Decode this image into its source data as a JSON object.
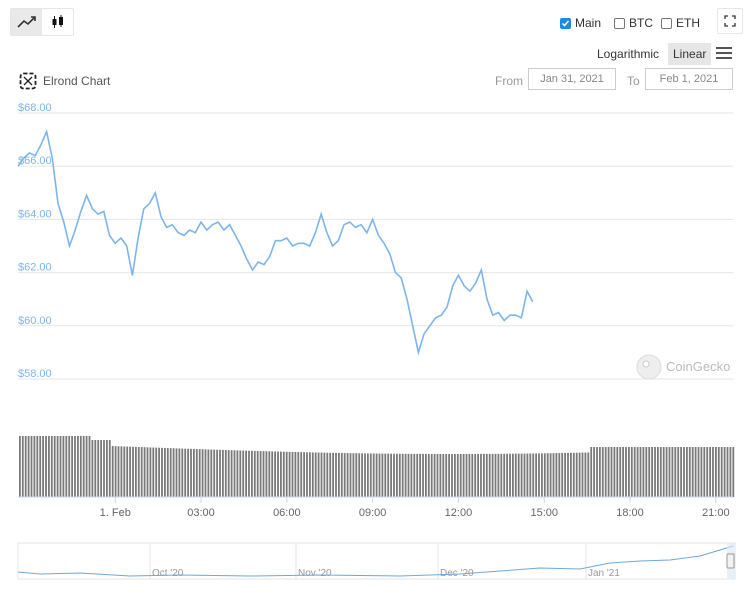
{
  "toolbar": {
    "line_chart_icon": "line-chart-icon",
    "candlestick_icon": "candlestick-icon",
    "fullscreen_icon": "fullscreen-icon",
    "menu_icon": "hamburger-menu-icon",
    "compare": [
      {
        "label": "Main",
        "checked": true
      },
      {
        "label": "BTC",
        "checked": false
      },
      {
        "label": "ETH",
        "checked": false
      }
    ],
    "scale_log": "Logarithmic",
    "scale_linear": "Linear"
  },
  "header": {
    "title": "Elrond Chart",
    "from_label": "From",
    "from_value": "Jan 31, 2021",
    "to_label": "To",
    "to_value": "Feb 1, 2021"
  },
  "watermark": "CoinGecko",
  "colors": {
    "line": "#7cb5ec",
    "volume": "#7a7a7a",
    "accent": "#1e88e5",
    "axis_label": "#7cb5ec",
    "grid": "#e6e6e6"
  },
  "chart_data": {
    "type": "line",
    "title": "",
    "xlabel": "",
    "ylabel": "",
    "y_ticks": [
      "$58.00",
      "$60.00",
      "$62.00",
      "$64.00",
      "$66.00",
      "$68.00"
    ],
    "ylim": [
      58,
      68
    ],
    "grid": true,
    "x_ticks": [
      "1. Feb",
      "03:00",
      "06:00",
      "09:00",
      "12:00",
      "15:00",
      "18:00",
      "21:00"
    ],
    "x_tick_hours": [
      24,
      27,
      30,
      33,
      36,
      39,
      42,
      45
    ],
    "x_range_hours": [
      20.6,
      45.6
    ],
    "price": [
      [
        20.6,
        66.0
      ],
      [
        20.8,
        66.3
      ],
      [
        21.0,
        66.5
      ],
      [
        21.2,
        66.4
      ],
      [
        21.4,
        66.8
      ],
      [
        21.6,
        67.3
      ],
      [
        21.8,
        66.3
      ],
      [
        22.0,
        64.6
      ],
      [
        22.2,
        63.9
      ],
      [
        22.4,
        63.0
      ],
      [
        22.6,
        63.6
      ],
      [
        22.8,
        64.3
      ],
      [
        23.0,
        64.9
      ],
      [
        23.2,
        64.4
      ],
      [
        23.4,
        64.2
      ],
      [
        23.6,
        64.3
      ],
      [
        23.8,
        63.4
      ],
      [
        24.0,
        63.1
      ],
      [
        24.2,
        63.3
      ],
      [
        24.4,
        63.0
      ],
      [
        24.6,
        61.9
      ],
      [
        24.8,
        63.3
      ],
      [
        25.0,
        64.4
      ],
      [
        25.2,
        64.6
      ],
      [
        25.4,
        65.0
      ],
      [
        25.6,
        64.1
      ],
      [
        25.8,
        63.7
      ],
      [
        26.0,
        63.8
      ],
      [
        26.2,
        63.5
      ],
      [
        26.4,
        63.4
      ],
      [
        26.6,
        63.6
      ],
      [
        26.8,
        63.5
      ],
      [
        27.0,
        63.9
      ],
      [
        27.2,
        63.6
      ],
      [
        27.4,
        63.8
      ],
      [
        27.6,
        63.9
      ],
      [
        27.8,
        63.6
      ],
      [
        28.0,
        63.8
      ],
      [
        28.2,
        63.4
      ],
      [
        28.4,
        63.0
      ],
      [
        28.6,
        62.5
      ],
      [
        28.8,
        62.1
      ],
      [
        29.0,
        62.4
      ],
      [
        29.2,
        62.3
      ],
      [
        29.4,
        62.6
      ],
      [
        29.6,
        63.2
      ],
      [
        29.8,
        63.2
      ],
      [
        30.0,
        63.3
      ],
      [
        30.2,
        63.0
      ],
      [
        30.4,
        63.1
      ],
      [
        30.6,
        63.1
      ],
      [
        30.8,
        63.0
      ],
      [
        31.0,
        63.5
      ],
      [
        31.2,
        64.2
      ],
      [
        31.4,
        63.5
      ],
      [
        31.6,
        63.0
      ],
      [
        31.8,
        63.2
      ],
      [
        32.0,
        63.8
      ],
      [
        32.2,
        63.9
      ],
      [
        32.4,
        63.7
      ],
      [
        32.6,
        63.8
      ],
      [
        32.8,
        63.5
      ],
      [
        33.0,
        64.0
      ],
      [
        33.2,
        63.4
      ],
      [
        33.4,
        63.1
      ],
      [
        33.6,
        62.7
      ],
      [
        33.8,
        62.0
      ],
      [
        34.0,
        61.8
      ],
      [
        34.2,
        61.0
      ],
      [
        34.4,
        60.0
      ],
      [
        34.6,
        59.0
      ],
      [
        34.8,
        59.7
      ],
      [
        35.0,
        60.0
      ],
      [
        35.2,
        60.3
      ],
      [
        35.4,
        60.4
      ],
      [
        35.6,
        60.7
      ],
      [
        35.8,
        61.5
      ],
      [
        36.0,
        61.9
      ],
      [
        36.2,
        61.5
      ],
      [
        36.4,
        61.3
      ],
      [
        36.6,
        61.6
      ],
      [
        36.8,
        62.1
      ],
      [
        37.0,
        61.0
      ],
      [
        37.2,
        60.4
      ],
      [
        37.4,
        60.5
      ],
      [
        37.6,
        60.2
      ],
      [
        37.8,
        60.4
      ],
      [
        38.0,
        60.4
      ],
      [
        38.2,
        60.3
      ],
      [
        38.4,
        61.3
      ],
      [
        38.6,
        60.9
      ]
    ],
    "volume_series": "present"
  }
}
